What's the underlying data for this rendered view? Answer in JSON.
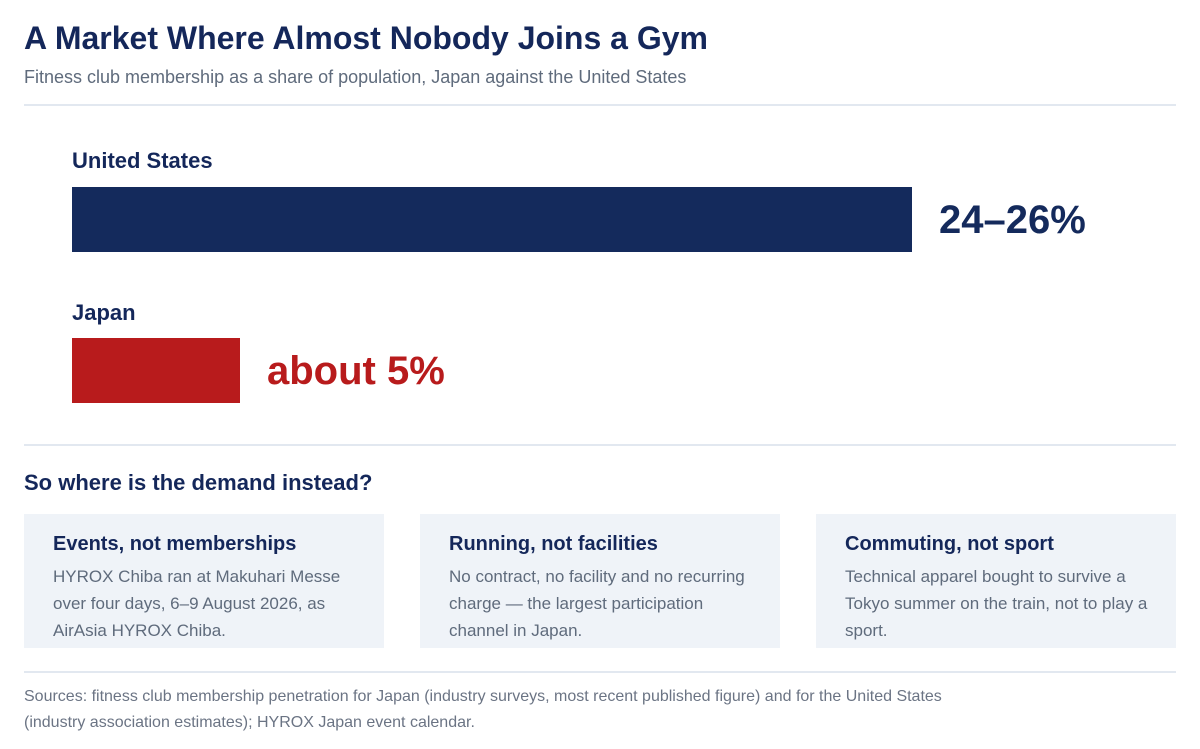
{
  "header": {
    "title": "A Market Where Almost Nobody Joins a Gym",
    "subtitle": "Fitness club membership as a share of population, Japan against the United States"
  },
  "chart_data": {
    "type": "bar",
    "orientation": "horizontal",
    "categories": [
      "United States",
      "Japan"
    ],
    "values": [
      25,
      5
    ],
    "value_ranges": [
      [
        24,
        26
      ],
      [
        5,
        5
      ]
    ],
    "value_labels": [
      "24–26%",
      "about 5%"
    ],
    "colors": [
      "#142a5c",
      "#b81b1c"
    ],
    "xlim": [
      0,
      25
    ],
    "grid": false,
    "legend": "none"
  },
  "demand": {
    "heading": "So where is the demand instead?",
    "cards": [
      {
        "title": "Events, not memberships",
        "text": "HYROX Chiba ran at Makuhari Messe over four days, 6–9 August 2026, as AirAsia HYROX Chiba."
      },
      {
        "title": "Running, not facilities",
        "text": "No contract, no facility and no recurring charge — the largest participation channel in Japan."
      },
      {
        "title": "Commuting, not sport",
        "text": "Technical apparel bought to survive a Tokyo summer on the train, not to play a sport."
      }
    ]
  },
  "footer": {
    "sources": "Sources: fitness club membership penetration for Japan (industry surveys, most recent published figure) and for the United States (industry association estimates); HYROX Japan event calendar."
  }
}
